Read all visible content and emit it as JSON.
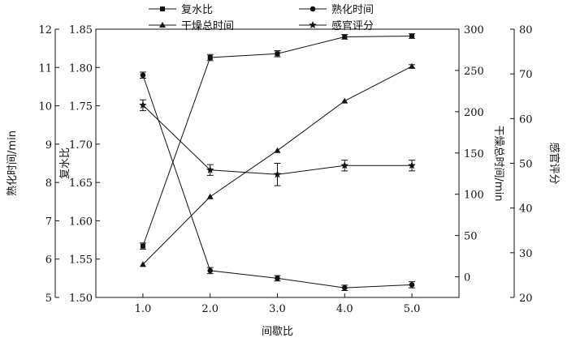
{
  "chart_data": {
    "type": "line",
    "x": [
      1.0,
      2.0,
      3.0,
      4.0,
      5.0
    ],
    "xlabel": "间歇比",
    "x_ticks": [
      "1.0",
      "2.0",
      "3.0",
      "4.0",
      "5.0"
    ],
    "xlim": [
      0.3,
      5.7
    ],
    "axes": [
      {
        "id": "cook",
        "label": "熟化时间/min",
        "position": "left-outer",
        "ylim": [
          5,
          12
        ],
        "ticks": [
          5,
          6,
          7,
          8,
          9,
          10,
          11,
          12
        ]
      },
      {
        "id": "rehyd",
        "label": "复水比",
        "position": "left-inner",
        "ylim": [
          1.5,
          1.85
        ],
        "ticks": [
          "1.50",
          "1.55",
          "1.60",
          "1.65",
          "1.70",
          "1.75",
          "1.80",
          "1.85"
        ]
      },
      {
        "id": "dry",
        "label": "干燥总时间/min",
        "position": "right-inner",
        "ylim": [
          -25,
          300
        ],
        "ticks": [
          0,
          50,
          100,
          150,
          200,
          250,
          300
        ]
      },
      {
        "id": "sens",
        "label": "感官评分",
        "position": "right-outer",
        "ylim": [
          20,
          80
        ],
        "ticks": [
          20,
          30,
          40,
          50,
          60,
          70,
          80
        ]
      }
    ],
    "series": [
      {
        "name": "复水比",
        "axis": "rehyd",
        "marker": "square",
        "values": [
          1.567,
          1.813,
          1.818,
          1.84,
          1.841
        ],
        "errors": [
          0.004,
          0.004,
          0.004,
          0.003,
          0.003
        ]
      },
      {
        "name": "熟化时间",
        "axis": "cook",
        "marker": "circle",
        "values": [
          10.8,
          5.7,
          5.5,
          5.25,
          5.33
        ],
        "errors": [
          0.08,
          0.08,
          0.07,
          0.07,
          0.08
        ]
      },
      {
        "name": "干燥总时间",
        "axis": "dry",
        "marker": "triangle",
        "values": [
          15,
          97,
          153,
          213,
          255
        ],
        "errors": [
          0,
          0,
          0,
          0,
          2
        ]
      },
      {
        "name": "感官评分",
        "axis": "sens",
        "marker": "star",
        "values": [
          63,
          48.5,
          47.5,
          49.5,
          49.5
        ],
        "errors": [
          1.2,
          1.2,
          2.5,
          1.2,
          1.2
        ]
      }
    ],
    "legend_position": "top"
  }
}
